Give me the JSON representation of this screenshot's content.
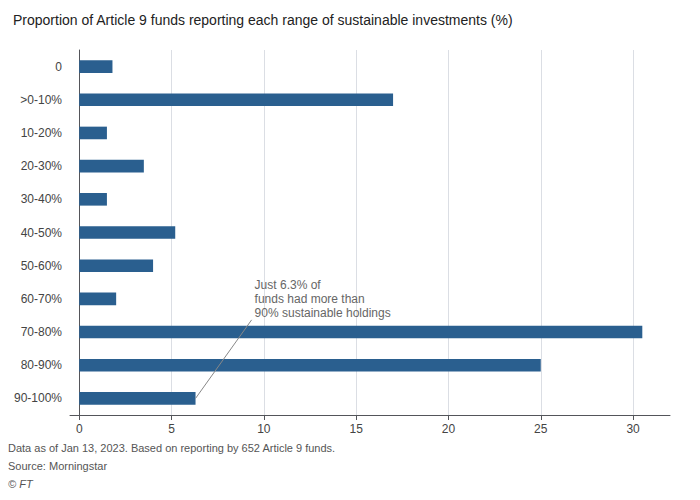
{
  "chart_data": {
    "type": "bar",
    "orientation": "horizontal",
    "title": "Proportion of Article 9 funds reporting each range of sustainable investments (%)",
    "categories": [
      "0",
      ">0-10%",
      "10-20%",
      "20-30%",
      "30-40%",
      "40-50%",
      "50-60%",
      "60-70%",
      "70-80%",
      "80-90%",
      "90-100%"
    ],
    "values": [
      1.8,
      17.0,
      1.5,
      3.5,
      1.5,
      5.2,
      4.0,
      2.0,
      30.5,
      25.0,
      6.3
    ],
    "color": "#2a5f8f",
    "xlim": [
      -0.5,
      32
    ],
    "xticks": [
      0,
      5,
      10,
      15,
      20,
      25,
      30
    ],
    "grid": true,
    "annotations": [
      {
        "text": "Just 6.3% of\nfunds had more than\n90% sustainable holdings",
        "x": 6.3,
        "y": "90-100%"
      }
    ],
    "footnotes": [
      "Data as of Jan 13, 2023. Based on reporting by 652 Article 9 funds.",
      "Source: Morningstar",
      "© FT"
    ]
  }
}
